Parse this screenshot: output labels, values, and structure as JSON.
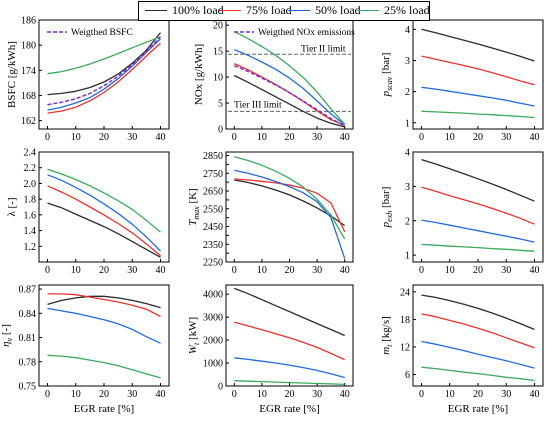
{
  "legend": [
    {
      "name": "100% load",
      "color": "#2b2b2b"
    },
    {
      "name": "75% load",
      "color": "#e8322e"
    },
    {
      "name": "50% load",
      "color": "#2469d8"
    },
    {
      "name": "25% load",
      "color": "#3aaa5b"
    }
  ],
  "chart_data": [
    {
      "type": "line",
      "ylabel": "BSFC [g/kWh]",
      "xlabel": "",
      "x": [
        0,
        5,
        10,
        15,
        20,
        25,
        30,
        35,
        40
      ],
      "ylim": [
        160,
        186
      ],
      "yticks": [
        162,
        168,
        174,
        180,
        186
      ],
      "xticks": [
        0,
        10,
        20,
        30,
        40
      ],
      "series": [
        {
          "name": "100% load",
          "values": [
            168.2,
            168.5,
            169.0,
            169.9,
            171.2,
            173.1,
            175.7,
            178.8,
            183.0
          ]
        },
        {
          "name": "75% load",
          "values": [
            163.8,
            164.3,
            165.2,
            166.7,
            168.7,
            171.2,
            174.2,
            177.4,
            180.5
          ]
        },
        {
          "name": "50% load",
          "values": [
            164.5,
            165.2,
            166.2,
            167.5,
            169.5,
            172.0,
            175.0,
            178.3,
            181.5
          ]
        },
        {
          "name": "25% load",
          "values": [
            173.2,
            173.7,
            174.5,
            175.5,
            176.7,
            178.0,
            179.4,
            180.7,
            182.0
          ]
        },
        {
          "name": "Weigthed BSFC",
          "values": [
            165.8,
            166.4,
            167.2,
            168.5,
            170.3,
            172.6,
            175.3,
            178.4,
            182.0
          ],
          "dashed": true
        }
      ],
      "annotations": [
        "Weigthed BSFC"
      ]
    },
    {
      "type": "line",
      "ylabel": "NOx [g/kWh]",
      "xlabel": "",
      "x": [
        0,
        5,
        10,
        15,
        20,
        25,
        30,
        35,
        40
      ],
      "ylim": [
        0,
        21
      ],
      "yticks": [
        0,
        5,
        10,
        15,
        20
      ],
      "xticks": [
        0,
        10,
        20,
        30,
        40
      ],
      "series": [
        {
          "name": "100% load",
          "values": [
            10.3,
            9.0,
            7.6,
            6.2,
            4.8,
            3.4,
            2.1,
            1.1,
            0.4
          ]
        },
        {
          "name": "75% load",
          "values": [
            12.6,
            11.4,
            10.0,
            8.6,
            7.0,
            5.3,
            3.5,
            1.8,
            0.7
          ]
        },
        {
          "name": "50% load",
          "values": [
            15.3,
            14.2,
            12.9,
            11.5,
            9.8,
            7.8,
            5.4,
            2.9,
            0.8
          ]
        },
        {
          "name": "25% load",
          "values": [
            18.8,
            17.4,
            15.9,
            14.2,
            12.2,
            9.9,
            7.1,
            3.9,
            0.9
          ]
        },
        {
          "name": "Weigthed NOx emissions",
          "values": [
            12.2,
            11.1,
            9.8,
            8.5,
            7.0,
            5.4,
            3.7,
            2.0,
            0.6
          ],
          "dashed": true
        }
      ],
      "hlines": [
        {
          "y": 14.4,
          "label": "Tier II limit"
        },
        {
          "y": 3.4,
          "label": "Tier III limit"
        }
      ],
      "annotations": [
        "Weigthed NOx emissions",
        "Tier II limit",
        "Tier III limit"
      ]
    },
    {
      "type": "line",
      "ylabel": "p_scav [bar]",
      "xlabel": "",
      "x": [
        0,
        5,
        10,
        15,
        20,
        25,
        30,
        35,
        40
      ],
      "ylim": [
        0.8,
        4.3
      ],
      "yticks": [
        1,
        2,
        3,
        4
      ],
      "xticks": [
        0,
        10,
        20,
        30,
        40
      ],
      "series": [
        {
          "name": "100% load",
          "values": [
            4.0,
            3.89,
            3.77,
            3.65,
            3.53,
            3.4,
            3.27,
            3.13,
            2.98
          ]
        },
        {
          "name": "75% load",
          "values": [
            3.14,
            3.04,
            2.94,
            2.84,
            2.73,
            2.61,
            2.48,
            2.34,
            2.22
          ]
        },
        {
          "name": "50% load",
          "values": [
            2.14,
            2.08,
            2.01,
            1.94,
            1.87,
            1.8,
            1.72,
            1.63,
            1.54
          ]
        },
        {
          "name": "25% load",
          "values": [
            1.37,
            1.35,
            1.33,
            1.31,
            1.28,
            1.26,
            1.23,
            1.2,
            1.17
          ]
        }
      ]
    },
    {
      "type": "line",
      "ylabel": "λ [-]",
      "xlabel": "",
      "x": [
        0,
        5,
        10,
        15,
        20,
        25,
        30,
        35,
        40
      ],
      "ylim": [
        1.0,
        2.4
      ],
      "yticks": [
        1.2,
        1.4,
        1.6,
        1.8,
        2.0,
        2.2,
        2.4
      ],
      "xticks": [
        0,
        10,
        20,
        30,
        40
      ],
      "series": [
        {
          "name": "100% load",
          "values": [
            1.75,
            1.69,
            1.61,
            1.53,
            1.45,
            1.36,
            1.26,
            1.16,
            1.06
          ]
        },
        {
          "name": "75% load",
          "values": [
            1.97,
            1.89,
            1.8,
            1.7,
            1.6,
            1.49,
            1.37,
            1.23,
            1.08
          ]
        },
        {
          "name": "50% load",
          "values": [
            2.11,
            2.04,
            1.95,
            1.85,
            1.74,
            1.62,
            1.48,
            1.32,
            1.14
          ]
        },
        {
          "name": "25% load",
          "values": [
            2.18,
            2.12,
            2.05,
            1.97,
            1.88,
            1.78,
            1.67,
            1.53,
            1.38
          ]
        }
      ]
    },
    {
      "type": "line",
      "ylabel": "T_max [K]",
      "xlabel": "",
      "x": [
        0,
        5,
        10,
        15,
        20,
        25,
        30,
        35,
        40
      ],
      "ylim": [
        2250,
        2870
      ],
      "yticks": [
        2250,
        2300,
        2350,
        2400,
        2450,
        2500,
        2550,
        2600,
        2650,
        2700,
        2750,
        2800,
        2850
      ],
      "yticklabels": [
        2250,
        2300,
        2350,
        2400,
        2450,
        2500,
        2550,
        2600,
        2650,
        2700,
        2750,
        2800,
        2850
      ],
      "xticks": [
        0,
        10,
        20,
        30,
        40
      ],
      "series": [
        {
          "name": "100% load",
          "values": [
            2712,
            2698,
            2679,
            2656,
            2628,
            2594,
            2555,
            2510,
            2455
          ]
        },
        {
          "name": "75% load",
          "values": [
            2718,
            2712,
            2705,
            2696,
            2684,
            2666,
            2637,
            2583,
            2420
          ]
        },
        {
          "name": "50% load",
          "values": [
            2767,
            2750,
            2729,
            2704,
            2675,
            2640,
            2590,
            2500,
            2270
          ]
        },
        {
          "name": "25% load",
          "values": [
            2843,
            2822,
            2795,
            2762,
            2722,
            2672,
            2603,
            2515,
            2380
          ]
        }
      ]
    },
    {
      "type": "line",
      "ylabel": "p_exh [bar]",
      "xlabel": "",
      "x": [
        0,
        5,
        10,
        15,
        20,
        25,
        30,
        35,
        40
      ],
      "ylim": [
        0.8,
        4.0
      ],
      "yticks": [
        1,
        2,
        3,
        4
      ],
      "xticks": [
        0,
        10,
        20,
        30,
        40
      ],
      "series": [
        {
          "name": "100% load",
          "values": [
            3.78,
            3.65,
            3.51,
            3.37,
            3.22,
            3.07,
            2.91,
            2.74,
            2.57
          ]
        },
        {
          "name": "75% load",
          "values": [
            2.98,
            2.86,
            2.73,
            2.61,
            2.49,
            2.36,
            2.22,
            2.07,
            1.9
          ]
        },
        {
          "name": "50% load",
          "values": [
            2.02,
            1.95,
            1.87,
            1.79,
            1.71,
            1.63,
            1.55,
            1.47,
            1.38
          ]
        },
        {
          "name": "25% load",
          "values": [
            1.31,
            1.29,
            1.26,
            1.24,
            1.22,
            1.19,
            1.17,
            1.14,
            1.11
          ]
        }
      ]
    },
    {
      "type": "line",
      "ylabel": "η_v [-]",
      "xlabel": "EGR rate [%]",
      "x": [
        0,
        5,
        10,
        15,
        20,
        25,
        30,
        35,
        40
      ],
      "ylim": [
        0.75,
        0.875
      ],
      "yticks": [
        0.75,
        0.78,
        0.81,
        0.84,
        0.87
      ],
      "xticks": [
        0,
        10,
        20,
        30,
        40
      ],
      "series": [
        {
          "name": "100% load",
          "values": [
            0.851,
            0.856,
            0.859,
            0.861,
            0.861,
            0.859,
            0.856,
            0.852,
            0.847
          ]
        },
        {
          "name": "75% load",
          "values": [
            0.864,
            0.864,
            0.863,
            0.86,
            0.857,
            0.854,
            0.85,
            0.845,
            0.836
          ]
        },
        {
          "name": "50% load",
          "values": [
            0.846,
            0.843,
            0.84,
            0.836,
            0.832,
            0.827,
            0.82,
            0.811,
            0.803
          ]
        },
        {
          "name": "25% load",
          "values": [
            0.788,
            0.787,
            0.785,
            0.782,
            0.779,
            0.775,
            0.77,
            0.765,
            0.76
          ]
        }
      ]
    },
    {
      "type": "line",
      "ylabel": "W_t [kW]",
      "xlabel": "EGR rate [%]",
      "x": [
        0,
        5,
        10,
        15,
        20,
        25,
        30,
        35,
        40
      ],
      "ylim": [
        0,
        4400
      ],
      "yticks": [
        0,
        1000,
        2000,
        3000,
        4000
      ],
      "xticks": [
        0,
        10,
        20,
        30,
        40
      ],
      "series": [
        {
          "name": "100% load",
          "values": [
            4250,
            4020,
            3760,
            3500,
            3240,
            2980,
            2720,
            2460,
            2200
          ]
        },
        {
          "name": "75% load",
          "values": [
            2780,
            2620,
            2450,
            2280,
            2100,
            1900,
            1680,
            1420,
            1150
          ]
        },
        {
          "name": "50% load",
          "values": [
            1230,
            1160,
            1080,
            1000,
            910,
            800,
            680,
            530,
            370
          ]
        },
        {
          "name": "25% load",
          "values": [
            230,
            210,
            190,
            170,
            150,
            130,
            110,
            90,
            70
          ]
        }
      ]
    },
    {
      "type": "line",
      "ylabel": "m_t [kg/s]",
      "xlabel": "EGR rate [%]",
      "x": [
        0,
        5,
        10,
        15,
        20,
        25,
        30,
        35,
        40
      ],
      "ylim": [
        3.5,
        25.5
      ],
      "yticks": [
        6,
        12,
        18,
        24
      ],
      "xticks": [
        0,
        10,
        20,
        30,
        40
      ],
      "series": [
        {
          "name": "100% load",
          "values": [
            23.3,
            22.8,
            22.1,
            21.3,
            20.4,
            19.4,
            18.3,
            17.1,
            15.8
          ]
        },
        {
          "name": "75% load",
          "values": [
            19.2,
            18.6,
            17.8,
            17.0,
            16.1,
            15.1,
            14.0,
            12.9,
            11.8
          ]
        },
        {
          "name": "50% load",
          "values": [
            13.2,
            12.6,
            11.9,
            11.2,
            10.4,
            9.7,
            9.0,
            8.2,
            7.4
          ]
        },
        {
          "name": "25% load",
          "values": [
            7.6,
            7.3,
            6.9,
            6.5,
            6.2,
            5.8,
            5.4,
            5.1,
            4.7
          ]
        }
      ]
    }
  ]
}
